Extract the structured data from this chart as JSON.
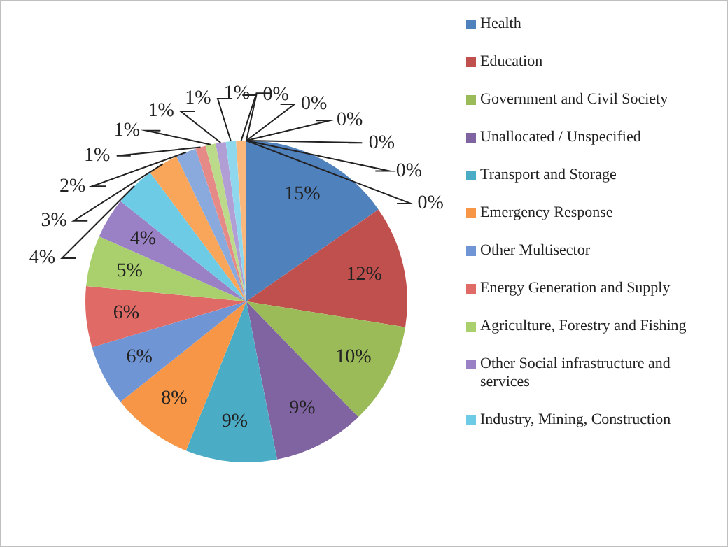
{
  "chart_data": {
    "type": "pie",
    "categories": [
      "Health",
      "Education",
      "Government and Civil Society",
      "Unallocated / Unspecified",
      "Transport and Storage",
      "Emergency Response",
      "Other Multisector",
      "Energy Generation and Supply",
      "Agriculture, Forestry and Fishing",
      "Other Social infrastructure and services",
      "Industry, Mining, Construction",
      null,
      null,
      null,
      null,
      null,
      null,
      null,
      null,
      null,
      null,
      null,
      null,
      null
    ],
    "values": [
      15,
      12,
      10,
      9,
      9,
      8,
      6,
      6,
      5,
      4,
      4,
      3,
      2,
      1,
      1,
      1,
      1,
      1,
      0,
      0,
      0,
      0,
      0,
      0
    ],
    "colors": [
      "#4f81bd",
      "#c0504d",
      "#9bbb59",
      "#8064a2",
      "#4bacc6",
      "#f79646",
      "#6f95d4",
      "#e06a66",
      "#a9d06c",
      "#9a80c4",
      "#6ecbe6",
      "#f9a55a",
      "#8aa9dc",
      "#e58a87",
      "#bcdb8a",
      "#b09ed4",
      "#8fd7ed",
      "#fab87c",
      "#a3bde4",
      "#eba7a5",
      "#cce5a8",
      "#c4b6df",
      "#abe1f1",
      "#fbcb9e"
    ],
    "value_labels": [
      "15%",
      "12%",
      "10%",
      "9%",
      "9%",
      "8%",
      "6%",
      "6%",
      "5%",
      "4%",
      "4%",
      "3%",
      "2%",
      "1%",
      "1%",
      "1%",
      "1%",
      "1%",
      "0%",
      "0%",
      "0%",
      "0%",
      "0%",
      "0%"
    ],
    "legend": "right"
  }
}
